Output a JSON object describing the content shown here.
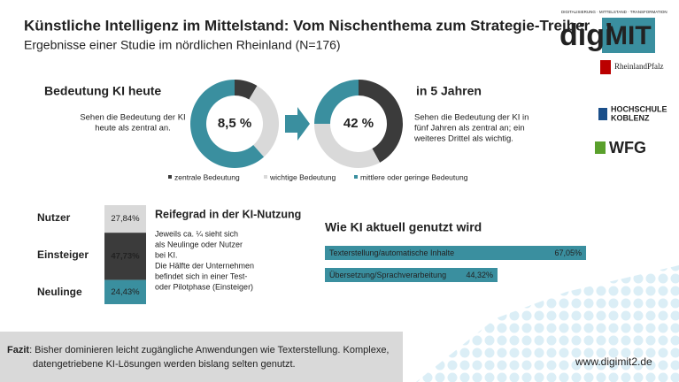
{
  "header": {
    "title": "Künstliche Intelligenz im Mittelstand: Vom Nischenthema zum Strategie-Treiber",
    "subtitle": "Ergebnisse einer Studie im nördlichen Rheinland (N=176)"
  },
  "logos": {
    "digi": "digi",
    "mit": "MIT",
    "tagline": "DIGITALISIERUNG · MITTELSTAND · TRANSFORMATION",
    "state": "RheinlandPfalz",
    "university": [
      "HOCHSCHULE",
      "KOBLENZ"
    ],
    "wfg": "WFG"
  },
  "donuts": {
    "legend": [
      {
        "name": "zentrale Bedeutung",
        "color": "#3b3b3b"
      },
      {
        "name": "wichtige Bedeutung",
        "color": "#d9d9d9"
      },
      {
        "name": "mittlere oder geringe Bedeutung",
        "color": "#3a8f9f"
      }
    ],
    "charts": [
      {
        "heading": "Bedeutung KI heute",
        "center_label": "8,5 %",
        "text": [
          "Sehen die Bedeutung der KI",
          "heute als zentral an."
        ],
        "values": [
          8.5,
          30,
          61.5
        ]
      },
      {
        "heading": "in 5 Jahren",
        "center_label": "42 %",
        "text": [
          "Sehen die Bedeutung der KI in",
          "fünf Jahren als zentral an; ein",
          "weiteres Drittel als wichtig."
        ],
        "values": [
          42,
          33,
          25
        ]
      }
    ]
  },
  "maturity": {
    "heading": "Reifegrad in der KI-Nutzung",
    "text": [
      "Jeweils ca. ¼ sieht sich",
      "als Neulinge oder Nutzer",
      "bei KI.",
      "Die Hälfte der Unternehmen",
      "befindet sich in einer Test-",
      "oder Pilotphase (Einsteiger)"
    ],
    "segments": [
      {
        "name": "Nutzer",
        "value": 27.84,
        "value_label": "27,84%",
        "color": "#d9d9d9"
      },
      {
        "name": "Einsteiger",
        "value": 47.73,
        "value_label": "47,73%",
        "color": "#3b3b3b"
      },
      {
        "name": "Neulinge",
        "value": 24.43,
        "value_label": "24,43%",
        "color": "#3a8f9f"
      }
    ]
  },
  "usage": {
    "heading": "Wie KI aktuell genutzt wird",
    "color": "#3a8f9f",
    "bars": [
      {
        "label": "Texterstellung/automatische Inhalte",
        "value": 67.05,
        "value_label": "67,05%"
      },
      {
        "label": "Übersetzung/Sprachverarbeitung",
        "value": 44.32,
        "value_label": "44,32%"
      }
    ]
  },
  "footer": {
    "bold": "Fazit",
    "text": [
      ": Bisher dominieren leicht zugängliche Anwendungen wie Texterstellung. Komplexe,",
      "datengetriebene KI-Lösungen werden bislang selten genutzt."
    ],
    "url": "www.digimit2.de"
  }
}
